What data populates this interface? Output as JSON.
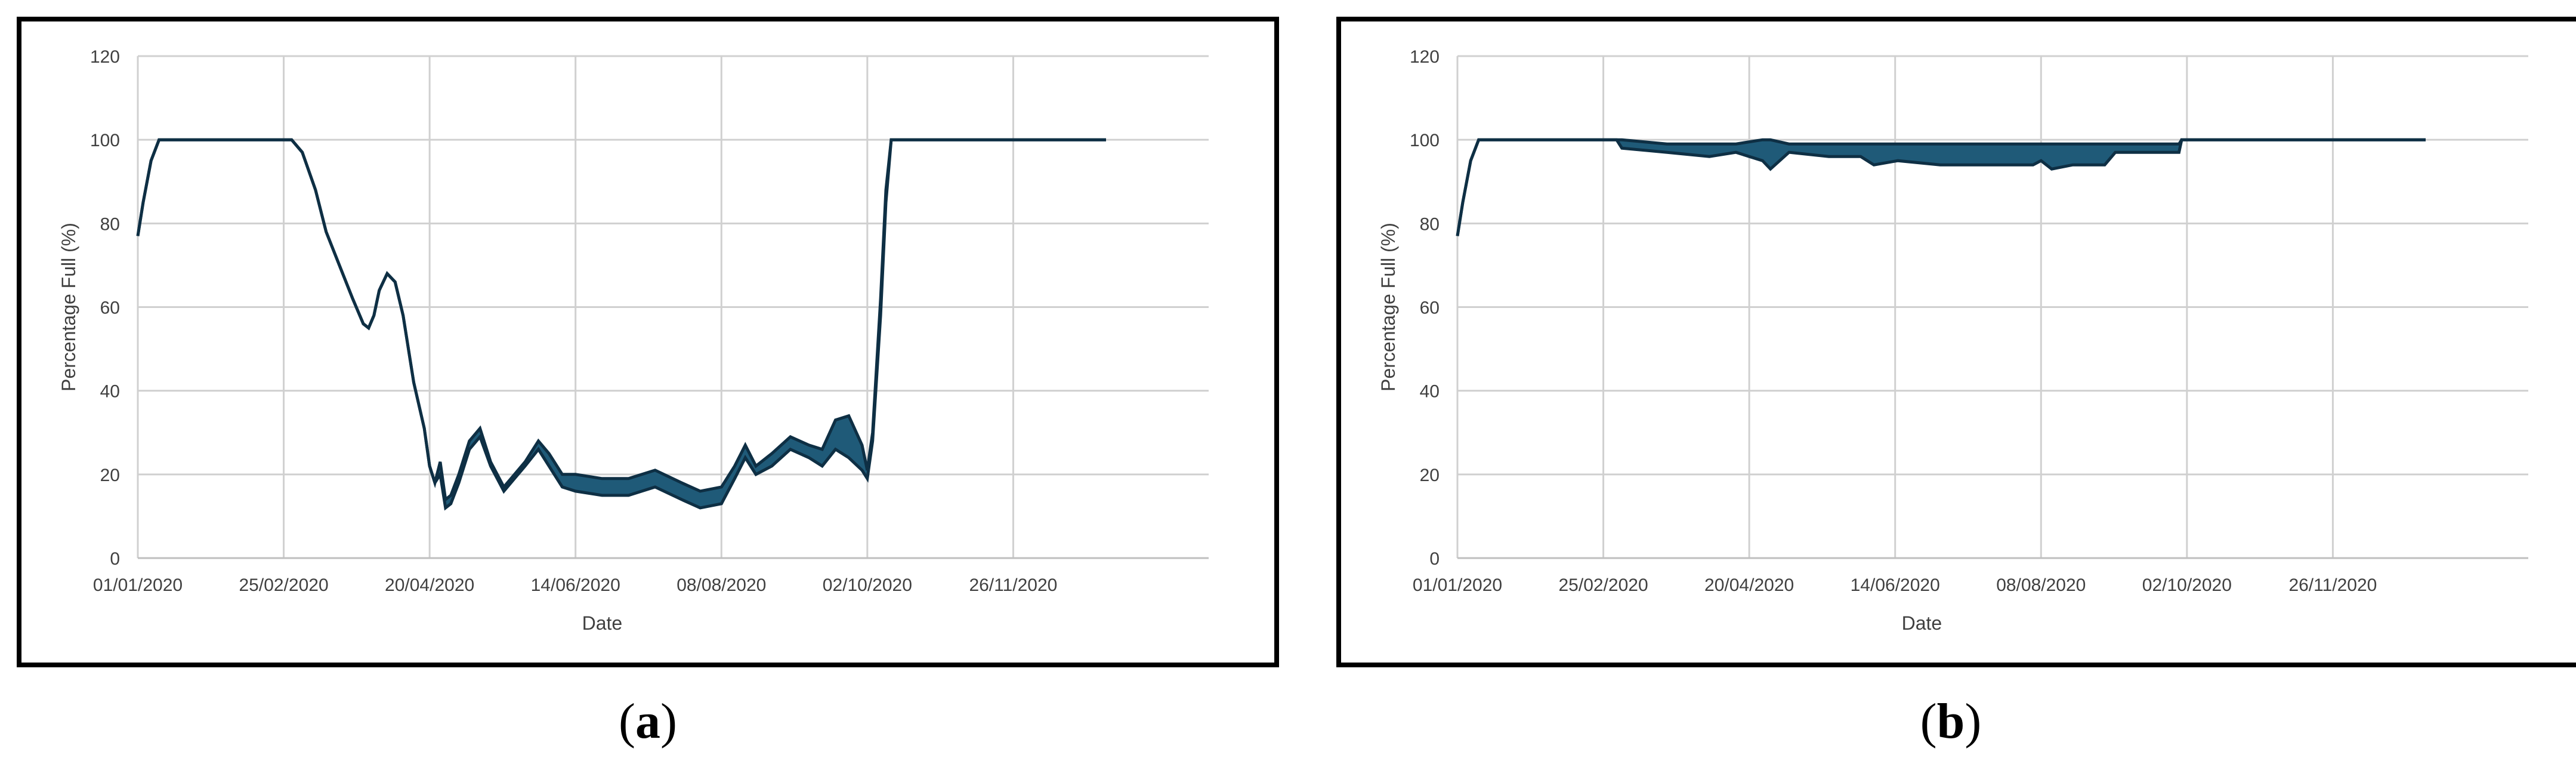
{
  "chart_data": [
    {
      "type": "line",
      "panel_label": "a",
      "xlabel": "Date",
      "ylabel": "Percentage Full (%)",
      "ylim": [
        0,
        120
      ],
      "yticks": [
        0,
        20,
        40,
        60,
        80,
        100,
        120
      ],
      "xtick_labels": [
        "01/01/2020",
        "25/02/2020",
        "20/04/2020",
        "14/06/2020",
        "08/08/2020",
        "02/10/2020",
        "26/11/2020"
      ],
      "xlim": [
        "01/01/2020",
        "31/12/2020"
      ],
      "grid": true,
      "legend": "none",
      "series_color": "#1f5a78",
      "series": [
        {
          "x": [
            "01/01/2020",
            "03/01/2020",
            "06/01/2020",
            "09/01/2020",
            "28/02/2020",
            "03/03/2020",
            "08/03/2020",
            "12/03/2020",
            "17/03/2020",
            "22/03/2020",
            "26/03/2020",
            "28/03/2020",
            "30/03/2020",
            "01/04/2020",
            "04/04/2020",
            "07/04/2020",
            "10/04/2020",
            "14/04/2020",
            "18/04/2020",
            "20/04/2020",
            "22/04/2020",
            "24/04/2020",
            "26/04/2020",
            "28/04/2020",
            "01/05/2020",
            "05/05/2020",
            "09/05/2020",
            "13/05/2020",
            "18/05/2020",
            "22/05/2020",
            "26/05/2020",
            "31/05/2020",
            "04/06/2020",
            "09/06/2020",
            "14/06/2020",
            "24/06/2020",
            "04/07/2020",
            "14/07/2020",
            "24/07/2020",
            "31/07/2020",
            "08/08/2020",
            "13/08/2020",
            "17/08/2020",
            "21/08/2020",
            "27/08/2020",
            "03/09/2020",
            "10/09/2020",
            "15/09/2020",
            "20/09/2020",
            "25/09/2020",
            "30/09/2020",
            "02/10/2020",
            "04/10/2020",
            "07/10/2020",
            "09/10/2020",
            "11/10/2020",
            "31/12/2020"
          ],
          "low": [
            77,
            85,
            95,
            100,
            100,
            97,
            88,
            78,
            70,
            62,
            56,
            55,
            58,
            64,
            68,
            66,
            58,
            42,
            31,
            22,
            18,
            20,
            12,
            13,
            18,
            26,
            29,
            22,
            16,
            19,
            22,
            26,
            22,
            17,
            16,
            15,
            15,
            17,
            14,
            12,
            13,
            19,
            24,
            20,
            22,
            26,
            24,
            22,
            26,
            24,
            21,
            19,
            28,
            58,
            85,
            100,
            100
          ],
          "high": [
            77,
            85,
            95,
            100,
            100,
            97,
            88,
            78,
            70,
            62,
            56,
            55,
            58,
            64,
            68,
            66,
            58,
            42,
            31,
            22,
            18,
            23,
            14,
            15,
            20,
            28,
            31,
            23,
            17,
            20,
            23,
            28,
            25,
            20,
            20,
            19,
            19,
            21,
            18,
            16,
            17,
            22,
            27,
            22,
            25,
            29,
            27,
            26,
            33,
            34,
            27,
            21,
            30,
            62,
            88,
            100,
            100
          ]
        }
      ]
    },
    {
      "type": "line",
      "panel_label": "b",
      "xlabel": "Date",
      "ylabel": "Percentage Full (%)",
      "ylim": [
        0,
        120
      ],
      "yticks": [
        0,
        20,
        40,
        60,
        80,
        100,
        120
      ],
      "xtick_labels": [
        "01/01/2020",
        "25/02/2020",
        "20/04/2020",
        "14/06/2020",
        "08/08/2020",
        "02/10/2020",
        "26/11/2020"
      ],
      "xlim": [
        "01/01/2020",
        "31/12/2020"
      ],
      "grid": true,
      "legend": "none",
      "series_color": "#1f5a78",
      "series": [
        {
          "x": [
            "01/01/2020",
            "03/01/2020",
            "06/01/2020",
            "09/01/2020",
            "01/03/2020",
            "03/03/2020",
            "20/03/2020",
            "05/04/2020",
            "15/04/2020",
            "25/04/2020",
            "28/04/2020",
            "05/05/2020",
            "20/05/2020",
            "01/06/2020",
            "06/06/2020",
            "15/06/2020",
            "01/07/2020",
            "20/07/2020",
            "05/08/2020",
            "08/08/2020",
            "12/08/2020",
            "20/08/2020",
            "01/09/2020",
            "05/09/2020",
            "15/09/2020",
            "29/09/2020",
            "30/09/2020",
            "31/12/2020"
          ],
          "low": [
            77,
            85,
            95,
            100,
            100,
            98,
            97,
            96,
            97,
            95,
            93,
            97,
            96,
            96,
            94,
            95,
            94,
            94,
            94,
            95,
            93,
            94,
            94,
            97,
            97,
            97,
            100,
            100
          ],
          "high": [
            77,
            85,
            95,
            100,
            100,
            100,
            99,
            99,
            99,
            100,
            100,
            99,
            99,
            99,
            99,
            99,
            99,
            99,
            99,
            99,
            99,
            99,
            99,
            99,
            99,
            99,
            100,
            100
          ]
        }
      ]
    }
  ]
}
